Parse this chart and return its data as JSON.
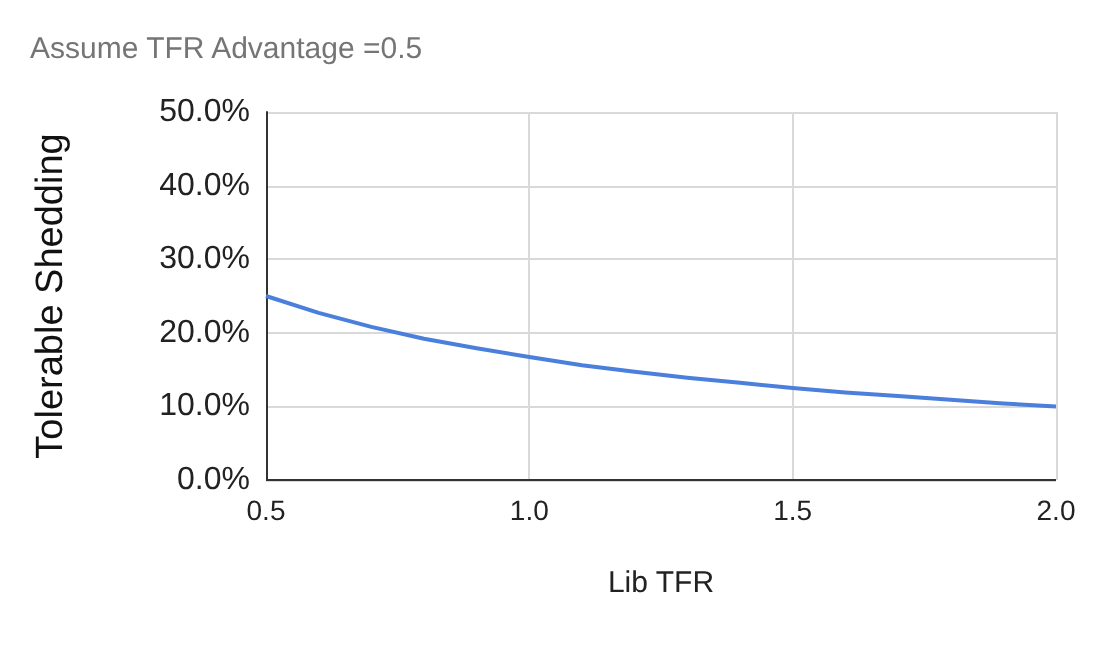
{
  "chart_data": {
    "type": "line",
    "title": "Assume TFR Advantage =0.5",
    "xlabel": "Lib TFR",
    "ylabel": "Tolerable Shedding",
    "x": [
      0.5,
      0.6,
      0.7,
      0.8,
      0.9,
      1.0,
      1.1,
      1.2,
      1.3,
      1.4,
      1.5,
      1.6,
      1.7,
      1.8,
      1.9,
      2.0
    ],
    "series": [
      {
        "color": "#4a7fdc",
        "values": [
          25,
          22.7,
          20.8,
          19.2,
          17.9,
          16.7,
          15.6,
          14.7,
          13.9,
          13.2,
          12.5,
          11.9,
          11.4,
          10.9,
          10.4,
          10.0
        ]
      }
    ],
    "xlim": [
      0.5,
      2.0
    ],
    "xticks": [
      {
        "value": 0.5,
        "label": "0.5"
      },
      {
        "value": 1,
        "label": "1.0"
      },
      {
        "value": 1.5,
        "label": "1.5"
      },
      {
        "value": 2,
        "label": "2.0"
      }
    ],
    "ylim": [
      0,
      50
    ],
    "yticks": [
      {
        "value": 0,
        "label": "0.0%"
      },
      {
        "value": 10,
        "label": "10.0%"
      },
      {
        "value": 20,
        "label": "20.0%"
      },
      {
        "value": 30,
        "label": "30.0%"
      },
      {
        "value": 40,
        "label": "40.0%"
      },
      {
        "value": 50,
        "label": "50.0%"
      }
    ],
    "grid": true,
    "line_style": "solid"
  }
}
